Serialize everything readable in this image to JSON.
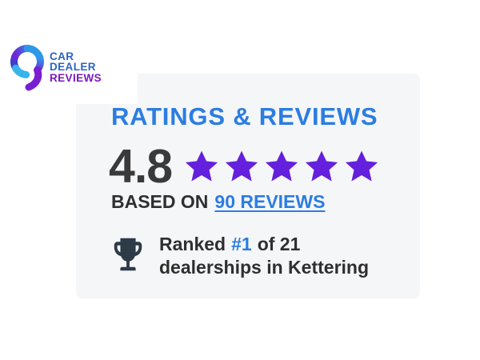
{
  "logo": {
    "lines": [
      {
        "text": "CAR"
      },
      {
        "text": "DEALER"
      },
      {
        "text": "REVIEWS"
      }
    ]
  },
  "card": {
    "heading": "RATINGS & REVIEWS",
    "rating_value": "4.8",
    "star_count": 5,
    "based_on_prefix": "BASED ON",
    "reviews_link": "90 REVIEWS",
    "ranked_prefix": "Ranked",
    "ranked_number": "#1",
    "ranked_suffix": "of 21",
    "ranked_line2": "dealerships in Kettering"
  },
  "colors": {
    "card_bg": "#f5f6f8",
    "heading_blue": "#2b7de1",
    "link_blue": "#2b7de1",
    "star_purple": "#6420dc",
    "rating_dark": "#3a3a3a",
    "text_dark": "#2f2f2f",
    "trophy_dark": "#2d3b48",
    "logo_blue": "#2b62c6",
    "logo_purple": "#7b18c0"
  }
}
